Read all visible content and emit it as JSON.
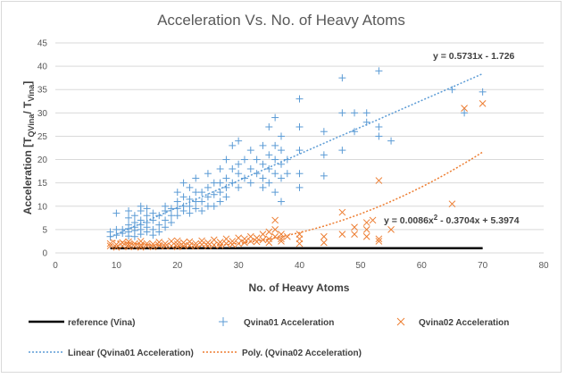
{
  "chart_data": {
    "type": "scatter",
    "title": "Acceleration Vs. No. of Heavy Atoms",
    "xlabel": "No. of Heavy Atoms",
    "ylabel": "Acceleration [T",
    "ylabel_sub1": "QVina",
    "ylabel_mid": "/ T",
    "ylabel_sub2": "Vina",
    "ylabel_end": "]",
    "xlim": [
      0,
      80
    ],
    "ylim": [
      0,
      45
    ],
    "x_ticks": [
      "0",
      "10",
      "20",
      "30",
      "40",
      "50",
      "60",
      "70",
      "80"
    ],
    "y_ticks": [
      "0",
      "5",
      "10",
      "15",
      "20",
      "25",
      "30",
      "35",
      "40",
      "45"
    ],
    "grid": "horizontal",
    "legend_position": "bottom",
    "colors": {
      "qvina01": "#5b9bd5",
      "qvina02": "#ed7d31",
      "reference": "#000000"
    },
    "reference": {
      "name": "reference (Vina)",
      "x": [
        9,
        70
      ],
      "y": [
        1,
        1
      ]
    },
    "series": [
      {
        "name": "Qvina01 Acceleration",
        "marker": "plus",
        "points": [
          [
            9,
            4.5
          ],
          [
            9,
            3.5
          ],
          [
            10,
            8.5
          ],
          [
            10,
            5
          ],
          [
            10,
            3.8
          ],
          [
            11,
            5
          ],
          [
            11,
            4.2
          ],
          [
            12,
            9
          ],
          [
            12,
            7.5
          ],
          [
            12,
            6
          ],
          [
            12,
            5.2
          ],
          [
            12,
            4.5
          ],
          [
            12,
            3.6
          ],
          [
            13,
            8
          ],
          [
            13,
            6.5
          ],
          [
            13,
            5.5
          ],
          [
            13,
            4.8
          ],
          [
            13,
            3.5
          ],
          [
            14,
            10
          ],
          [
            14,
            9
          ],
          [
            14,
            7
          ],
          [
            14,
            6
          ],
          [
            14,
            5
          ],
          [
            14,
            4
          ],
          [
            15,
            9.5
          ],
          [
            15,
            8
          ],
          [
            15,
            6.5
          ],
          [
            15,
            5.5
          ],
          [
            15,
            4.5
          ],
          [
            16,
            8.5
          ],
          [
            16,
            7
          ],
          [
            16,
            5
          ],
          [
            16,
            3.8
          ],
          [
            17,
            8
          ],
          [
            17,
            6
          ],
          [
            17,
            4.5
          ],
          [
            18,
            10
          ],
          [
            18,
            9
          ],
          [
            18,
            7
          ],
          [
            18,
            5.5
          ],
          [
            19,
            9.5
          ],
          [
            19,
            8
          ],
          [
            19,
            6.5
          ],
          [
            20,
            13
          ],
          [
            20,
            11
          ],
          [
            20,
            9.5
          ],
          [
            20,
            8
          ],
          [
            21,
            15
          ],
          [
            21,
            12
          ],
          [
            21,
            10
          ],
          [
            21,
            9
          ],
          [
            22,
            14
          ],
          [
            22,
            11.5
          ],
          [
            22,
            10
          ],
          [
            22,
            8.5
          ],
          [
            23,
            16
          ],
          [
            23,
            13
          ],
          [
            23,
            11
          ],
          [
            23,
            9.5
          ],
          [
            24,
            13
          ],
          [
            24,
            11
          ],
          [
            24,
            9
          ],
          [
            25,
            17
          ],
          [
            25,
            14
          ],
          [
            25,
            12
          ],
          [
            25,
            10
          ],
          [
            26,
            15
          ],
          [
            26,
            12.5
          ],
          [
            26,
            10
          ],
          [
            27,
            18
          ],
          [
            27,
            15
          ],
          [
            27,
            13
          ],
          [
            27,
            11
          ],
          [
            28,
            20
          ],
          [
            28,
            16
          ],
          [
            28,
            14
          ],
          [
            28,
            12
          ],
          [
            29,
            23
          ],
          [
            29,
            18
          ],
          [
            29,
            15
          ],
          [
            30,
            24
          ],
          [
            30,
            19
          ],
          [
            30,
            17
          ],
          [
            30,
            14
          ],
          [
            31,
            20
          ],
          [
            31,
            16
          ],
          [
            32,
            22
          ],
          [
            32,
            18
          ],
          [
            32,
            15
          ],
          [
            33,
            20
          ],
          [
            33,
            17
          ],
          [
            34,
            23
          ],
          [
            34,
            19
          ],
          [
            34,
            16
          ],
          [
            34,
            14
          ],
          [
            35,
            27
          ],
          [
            35,
            21
          ],
          [
            35,
            18
          ],
          [
            35,
            15
          ],
          [
            36,
            29
          ],
          [
            36,
            23
          ],
          [
            36,
            20
          ],
          [
            36,
            17
          ],
          [
            36,
            13
          ],
          [
            37,
            25
          ],
          [
            37,
            22
          ],
          [
            37,
            19
          ],
          [
            37,
            16
          ],
          [
            37,
            11
          ],
          [
            38,
            20
          ],
          [
            38,
            17
          ],
          [
            40,
            33
          ],
          [
            40,
            27
          ],
          [
            40,
            22
          ],
          [
            40,
            17
          ],
          [
            40,
            14
          ],
          [
            44,
            26
          ],
          [
            44,
            21
          ],
          [
            44,
            16.5
          ],
          [
            47,
            37.5
          ],
          [
            47,
            30
          ],
          [
            47,
            22
          ],
          [
            49,
            30
          ],
          [
            49,
            26
          ],
          [
            51,
            30
          ],
          [
            51,
            28
          ],
          [
            53,
            39
          ],
          [
            53,
            27
          ],
          [
            53,
            25
          ],
          [
            55,
            24
          ],
          [
            65,
            35
          ],
          [
            67,
            30
          ],
          [
            70,
            34.5
          ]
        ]
      },
      {
        "name": "Qvina02 Acceleration",
        "marker": "x",
        "points": [
          [
            9,
            1.5
          ],
          [
            9,
            2
          ],
          [
            10,
            1.2
          ],
          [
            10,
            1.8
          ],
          [
            11,
            1.5
          ],
          [
            11,
            2.2
          ],
          [
            12,
            1.3
          ],
          [
            12,
            1.8
          ],
          [
            12,
            2.4
          ],
          [
            13,
            1.4
          ],
          [
            13,
            2
          ],
          [
            14,
            1.2
          ],
          [
            14,
            1.7
          ],
          [
            14,
            2.5
          ],
          [
            15,
            1.5
          ],
          [
            15,
            2
          ],
          [
            16,
            1.3
          ],
          [
            16,
            1.9
          ],
          [
            17,
            1.6
          ],
          [
            17,
            2.3
          ],
          [
            18,
            1.4
          ],
          [
            18,
            2
          ],
          [
            19,
            1.5
          ],
          [
            19,
            2.5
          ],
          [
            20,
            1.3
          ],
          [
            20,
            1.9
          ],
          [
            20,
            2.6
          ],
          [
            21,
            1.5
          ],
          [
            21,
            2.2
          ],
          [
            22,
            1.6
          ],
          [
            22,
            2.4
          ],
          [
            23,
            1.4
          ],
          [
            23,
            2
          ],
          [
            24,
            1.8
          ],
          [
            24,
            2.6
          ],
          [
            25,
            1.5
          ],
          [
            25,
            2.2
          ],
          [
            26,
            1.7
          ],
          [
            26,
            2.8
          ],
          [
            27,
            1.6
          ],
          [
            27,
            2.3
          ],
          [
            28,
            2
          ],
          [
            28,
            3
          ],
          [
            29,
            1.8
          ],
          [
            29,
            2.5
          ],
          [
            30,
            2
          ],
          [
            30,
            3.2
          ],
          [
            31,
            2.2
          ],
          [
            31,
            3
          ],
          [
            32,
            2.5
          ],
          [
            32,
            3.5
          ],
          [
            33,
            2.4
          ],
          [
            33,
            3.2
          ],
          [
            34,
            2.8
          ],
          [
            34,
            4
          ],
          [
            35,
            3
          ],
          [
            35,
            4.5
          ],
          [
            35,
            2.2
          ],
          [
            36,
            3.5
          ],
          [
            36,
            5
          ],
          [
            36,
            7
          ],
          [
            37,
            3
          ],
          [
            37,
            4
          ],
          [
            37,
            2.5
          ],
          [
            38,
            3.5
          ],
          [
            40,
            4
          ],
          [
            40,
            3
          ],
          [
            40,
            2
          ],
          [
            44,
            3.5
          ],
          [
            44,
            2.2
          ],
          [
            47,
            8.7
          ],
          [
            47,
            4
          ],
          [
            49,
            5.5
          ],
          [
            49,
            4
          ],
          [
            51,
            6.5
          ],
          [
            51,
            5
          ],
          [
            51,
            3.5
          ],
          [
            52,
            7
          ],
          [
            53,
            15.5
          ],
          [
            53,
            3
          ],
          [
            53,
            2.5
          ],
          [
            55,
            5
          ],
          [
            65,
            10.5
          ],
          [
            67,
            31
          ],
          [
            70,
            32
          ]
        ]
      }
    ],
    "trendlines": [
      {
        "name": "Linear (Qvina01 Acceleration)",
        "equation": "y = 0.5731x - 1.726",
        "type": "linear",
        "coefficients": [
          0.5731,
          -1.726
        ],
        "x_range": [
          9,
          70
        ]
      },
      {
        "name": "Poly. (Qvina02 Acceleration)",
        "equation": "y = 0.0086x",
        "equation_sup": "2",
        "equation_tail": " - 0.3704x + 5.3974",
        "type": "poly2",
        "coefficients": [
          0.0086,
          -0.3704,
          5.3974
        ],
        "x_range": [
          9,
          70
        ]
      }
    ]
  }
}
